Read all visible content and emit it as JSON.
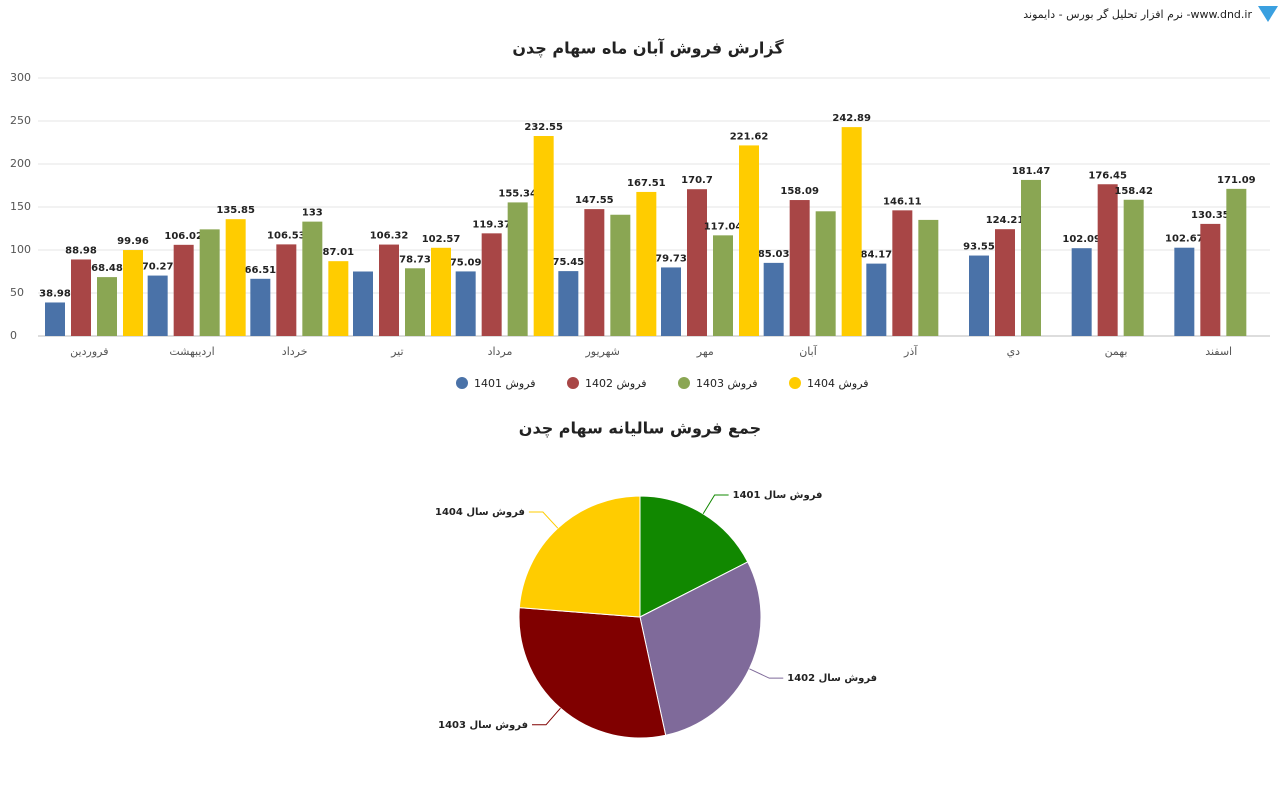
{
  "header_text": "نرم افزار تحلیل گر بورس - دایموند -www.dnd.ir",
  "chart_data": [
    {
      "type": "bar",
      "title": "گزارش فروش آبان ماه سهام چدن",
      "categories": [
        "فروردین",
        "اردیبهشت",
        "خرداد",
        "تیر",
        "مرداد",
        "شهریور",
        "مهر",
        "آبان",
        "آذر",
        "دي",
        "بهمن",
        "اسفند"
      ],
      "series": [
        {
          "name": "فروش 1401",
          "color": "#4a72a8",
          "values": [
            38.98,
            70.27,
            66.51,
            75,
            75.09,
            75.45,
            79.73,
            85.03,
            84.17,
            93.55,
            102.09,
            102.67
          ],
          "value_labels": [
            "38.98",
            "70.27",
            "66.51",
            null,
            "75.09",
            "75.45",
            "79.73",
            "85.03",
            "84.17",
            "93.55",
            "102.09",
            "102.67"
          ]
        },
        {
          "name": "فروش 1402",
          "color": "#a84646",
          "values": [
            88.98,
            106.02,
            106.53,
            106.32,
            119.37,
            147.55,
            170.7,
            158.09,
            146.11,
            124.21,
            176.45,
            130.35
          ],
          "value_labels": [
            "88.98",
            "106.02",
            "106.53",
            "106.32",
            "119.37",
            "147.55",
            "170.7",
            "158.09",
            "146.11",
            "124.21",
            "176.45",
            "130.35"
          ]
        },
        {
          "name": "فروش 1403",
          "color": "#8aa653",
          "values": [
            68.48,
            124,
            133,
            78.73,
            155.34,
            141,
            117.04,
            145,
            135,
            181.47,
            158.42,
            171.09
          ],
          "value_labels": [
            "68.48",
            null,
            "133",
            "78.73",
            "155.34",
            null,
            "117.04",
            null,
            null,
            "181.47",
            "158.42",
            "171.09"
          ]
        },
        {
          "name": "فروش 1404",
          "color": "#ffcc00",
          "values": [
            99.96,
            135.85,
            87.01,
            102.57,
            232.55,
            167.51,
            221.62,
            242.89,
            null,
            null,
            null,
            null
          ],
          "value_labels": [
            "99.96",
            "135.85",
            "87.01",
            "102.57",
            "232.55",
            "167.51",
            "221.62",
            "242.89",
            null,
            null,
            null,
            null
          ]
        }
      ],
      "ylim": [
        0,
        300
      ],
      "yticks": [
        0,
        50,
        100,
        150,
        200,
        250,
        300
      ],
      "grid": true,
      "legend": "bottom"
    },
    {
      "type": "pie",
      "title": "جمع فروش سالیانه سهام چدن",
      "labels": [
        "فروش سال 1401",
        "فروش سال 1402",
        "فروش سال 1403",
        "فروش سال 1404"
      ],
      "values": [
        948.5,
        1580.7,
        1608.6,
        1290.0
      ],
      "colors": [
        "#118800",
        "#7f6a9a",
        "#800000",
        "#ffcc00"
      ]
    }
  ]
}
